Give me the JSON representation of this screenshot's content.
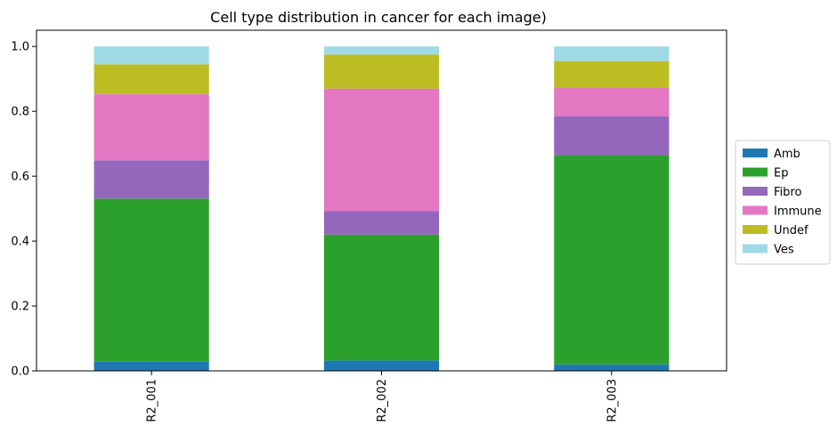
{
  "chart_data": {
    "type": "bar",
    "stacked": true,
    "title": "Cell type distribution in cancer for each image)",
    "xlabel": "",
    "ylabel": "",
    "categories": [
      "R2_001",
      "R2_002",
      "R2_003"
    ],
    "ylim": [
      0,
      1.05
    ],
    "yticks": [
      "0.0",
      "0.2",
      "0.4",
      "0.6",
      "0.8",
      "1.0"
    ],
    "grid": false,
    "legend_position": "right-center",
    "series": [
      {
        "name": "Amb",
        "color": "#1f77b4",
        "values": [
          0.028,
          0.032,
          0.02
        ]
      },
      {
        "name": "Ep",
        "color": "#2ca02c",
        "values": [
          0.503,
          0.388,
          0.645
        ]
      },
      {
        "name": "Fibro",
        "color": "#9467bd",
        "values": [
          0.118,
          0.073,
          0.12
        ]
      },
      {
        "name": "Immune",
        "color": "#e377c2",
        "values": [
          0.204,
          0.377,
          0.087
        ]
      },
      {
        "name": "Undef",
        "color": "#bcbd22",
        "values": [
          0.092,
          0.105,
          0.083
        ]
      },
      {
        "name": "Ves",
        "color": "#9edae5",
        "values": [
          0.055,
          0.025,
          0.045
        ]
      }
    ]
  }
}
